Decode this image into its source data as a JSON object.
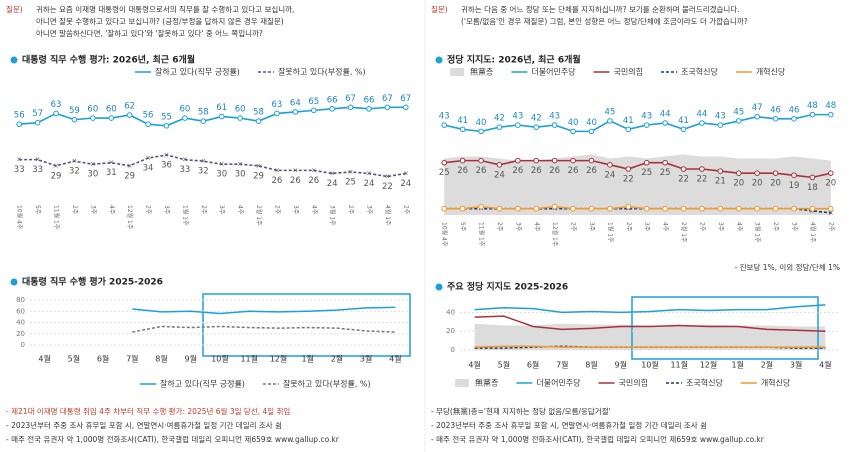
{
  "questions": {
    "left_label": "질문)",
    "left": "귀하는 요즘 이재명 대통령이 대통령으로서의 직무를 잘 수행하고 있다고 보십니까,",
    "left2": "아니면 잘못 수행하고 있다고 보십니까? (긍정/부정을 답하지 않은 경우 재질문)",
    "left3": "아니면 말씀하신다면, '잘하고 있다'와 '잘못하고 있다' 중 어느 쪽입니까?",
    "right_label": "질문)",
    "right": "귀하는 다음 중 어느 정당 또는 단체를 지지하십니까? 보기를 순환하며 불러드리겠습니다.",
    "right2": "('모름/없음'인 경우 재질문) 그럼, 본인 성향은 어느 정당/단체에 조금이라도 더 가깝습니까?"
  },
  "side_note": "- 진보당 1%, 이외 정당/단체 1%",
  "notes_left": [
    "- 제21대 이재명 대통령 취임 4주 차부터 직무 수행 평가: 2025년 6월 3일 당선, 4일 취임",
    "- 2023년부터 주중 조사 휴무일 포함 시, 연말연시·여름휴가철 일정 기간 데일리 조사 쉼",
    "- 매주 전국 유권자 약 1,000명 전화조사(CATI), 한국갤럽 데일리 오피니언 제659호 www.gallup.co.kr"
  ],
  "notes_right": [
    "- 무당(無黨)층='현재 지지하는 정당 없음/모름/응답거절'",
    "- 2023년부터 주중 조사 휴무일 포함 시, 연말연시·여름휴가철 일정 기간 데일리 조사 쉼",
    "- 매주 전국 유권자 약 1,000명 전화조사(CATI), 한국갤럽 데일리 오피니언 제659호 www.gallup.co.kr"
  ],
  "chart_data": [
    {
      "type": "line",
      "title": "대통령 직무 수행 평가: 2026년, 최근 6개월",
      "labels": true,
      "ylim": [
        10,
        75
      ],
      "categories": [
        "10월 4주",
        "5주",
        "11월 1주",
        "2주",
        "3주",
        "4주",
        "12월 1주",
        "2주",
        "3주",
        "1월 1주",
        "2주",
        "3주",
        "4주",
        "2월 1주",
        "2주",
        "3주",
        "4주",
        "3월 1주",
        "2주",
        "3주",
        "4월 1주",
        "2주"
      ],
      "series": [
        {
          "name": "잘하고 있다(직무 긍정률)",
          "color": "#1ca0d7",
          "values": [
            56,
            57,
            63,
            59,
            60,
            60,
            62,
            56,
            55,
            60,
            58,
            61,
            60,
            58,
            63,
            64,
            65,
            66,
            67,
            66,
            67,
            67
          ]
        },
        {
          "name": "잘못하고 있다(부정률, %)",
          "color": "#555577",
          "dashed": true,
          "values": [
            33,
            33,
            29,
            32,
            30,
            31,
            29,
            34,
            36,
            33,
            32,
            30,
            30,
            29,
            26,
            26,
            26,
            24,
            25,
            24,
            22,
            24
          ]
        }
      ]
    },
    {
      "type": "line",
      "title": "대통령 직무 수행 평가 2025-2026",
      "ylim": [
        0,
        80
      ],
      "yticks": [
        0,
        20,
        40,
        60,
        80
      ],
      "grid": true,
      "categories": [
        "4월",
        "5월",
        "6월",
        "7월",
        "8월",
        "9월",
        "10월",
        "11월",
        "12월",
        "1월",
        "2월",
        "3월",
        "4월"
      ],
      "series": [
        {
          "name": "잘하고 있다(직무 긍정률)",
          "color": "#1ca0d7",
          "values": [
            null,
            null,
            null,
            64,
            59,
            60,
            56,
            60,
            59,
            60,
            62,
            66,
            67
          ]
        },
        {
          "name": "잘못하고 있다(부정률, %)",
          "color": "#777777",
          "dashed": true,
          "values": [
            null,
            null,
            null,
            23,
            33,
            31,
            33,
            31,
            30,
            31,
            30,
            25,
            23
          ]
        }
      ]
    },
    {
      "type": "line",
      "title": "정당 지지도: 2026년, 최근 6개월",
      "labels": true,
      "ylim": [
        0,
        55
      ],
      "categories": [
        "10월 4주",
        "5주",
        "11월 1주",
        "2주",
        "3주",
        "4주",
        "12월 1주",
        "2주",
        "3주",
        "1월 1주",
        "2주",
        "3주",
        "4주",
        "2월 1주",
        "2주",
        "3주",
        "4주",
        "3월 1주",
        "2주",
        "3주",
        "4월 1주",
        "2주"
      ],
      "series": [
        {
          "name": "無黨층",
          "color": "#dcdcdc",
          "area": true,
          "nolabels": true,
          "values": [
            27,
            28,
            28,
            27,
            26,
            26,
            27,
            28,
            29,
            27,
            28,
            27,
            28,
            29,
            28,
            28,
            27,
            27,
            27,
            28,
            27,
            26
          ]
        },
        {
          "name": "더불어민주당",
          "color": "#1ca0d7",
          "values": [
            43,
            41,
            40,
            42,
            43,
            42,
            43,
            40,
            40,
            45,
            41,
            43,
            44,
            41,
            44,
            43,
            45,
            47,
            46,
            46,
            48,
            48
          ]
        },
        {
          "name": "국민의힘",
          "color": "#a8323a",
          "values": [
            25,
            26,
            26,
            24,
            26,
            26,
            26,
            26,
            26,
            24,
            22,
            25,
            25,
            22,
            22,
            21,
            20,
            20,
            20,
            19,
            18,
            20
          ]
        },
        {
          "name": "조국혁신당",
          "color": "#1f3a6e",
          "dashed": true,
          "nolabels": true,
          "values": [
            3,
            3,
            3,
            3,
            3,
            3,
            3,
            3,
            3,
            3,
            3,
            3,
            3,
            3,
            3,
            3,
            3,
            3,
            3,
            3,
            2,
            1
          ]
        },
        {
          "name": "개혁신당",
          "color": "#f29a2e",
          "nolabels": true,
          "values": [
            3,
            3,
            4,
            3,
            3,
            3,
            4,
            3,
            3,
            3,
            4,
            3,
            3,
            3,
            3,
            3,
            3,
            3,
            3,
            3,
            3,
            3
          ]
        }
      ]
    },
    {
      "type": "line",
      "title": "주요 정당 지지도 2025-2026",
      "ylim": [
        0,
        50
      ],
      "yticks": [
        0,
        20,
        40
      ],
      "grid": true,
      "categories": [
        "4월",
        "5월",
        "6월",
        "7월",
        "8월",
        "9월",
        "10월",
        "11월",
        "12월",
        "1월",
        "2월",
        "3월",
        "4월"
      ],
      "series": [
        {
          "name": "無黨층",
          "color": "#dcdcdc",
          "area": true,
          "values": [
            28,
            26,
            26,
            28,
            27,
            27,
            26,
            25,
            27,
            26,
            26,
            25,
            25
          ]
        },
        {
          "name": "더불어민주당",
          "color": "#1ca0d7",
          "values": [
            43,
            45,
            44,
            40,
            41,
            40,
            41,
            43,
            42,
            43,
            43,
            46,
            48
          ]
        },
        {
          "name": "국민의힘",
          "color": "#a8323a",
          "values": [
            35,
            36,
            25,
            22,
            23,
            25,
            25,
            26,
            25,
            25,
            22,
            21,
            20
          ]
        },
        {
          "name": "조국혁신당",
          "color": "#1f3a6e",
          "dashed": true,
          "values": [
            2,
            2,
            3,
            4,
            3,
            3,
            3,
            3,
            3,
            3,
            3,
            2,
            2
          ]
        },
        {
          "name": "개혁신당",
          "color": "#f29a2e",
          "values": [
            3,
            4,
            4,
            3,
            3,
            3,
            3,
            3,
            3,
            3,
            3,
            3,
            3
          ]
        }
      ]
    }
  ]
}
